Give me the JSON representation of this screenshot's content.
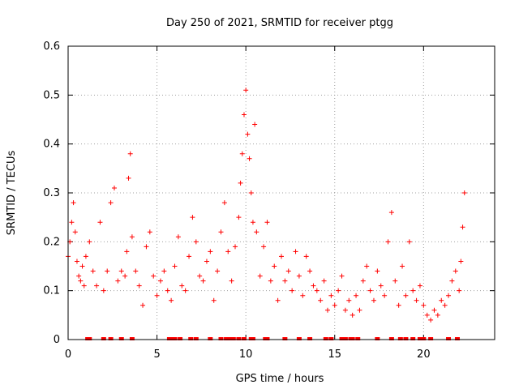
{
  "chart_data": {
    "type": "scatter",
    "title": "Day 250 of 2021, SRMTID for receiver ptgg",
    "xlabel": "GPS time / hours",
    "ylabel": "SRMTID / TECUs",
    "xlim": [
      0,
      24
    ],
    "ylim": [
      0,
      0.6
    ],
    "grid": true,
    "marker": "+",
    "color": "#ff0000",
    "x_ticks": [
      0,
      5,
      10,
      15,
      20
    ],
    "x_tick_labels": [
      "0",
      "5",
      "10",
      "15",
      "20"
    ],
    "y_ticks": [
      0,
      0.1,
      0.2,
      0.3,
      0.4,
      0.5,
      0.6
    ],
    "y_tick_labels": [
      "0",
      "0.1",
      "0.2",
      "0.3",
      "0.4",
      "0.5",
      "0.6"
    ],
    "series": [
      {
        "name": "SRMTID",
        "x": [
          0.0,
          0.1,
          0.2,
          0.3,
          0.4,
          0.5,
          0.6,
          0.7,
          0.8,
          0.9,
          1.0,
          1.2,
          1.4,
          1.6,
          1.8,
          2.0,
          2.2,
          2.4,
          2.6,
          2.8,
          3.0,
          3.2,
          3.3,
          3.4,
          3.5,
          3.6,
          3.8,
          4.0,
          4.2,
          4.4,
          4.6,
          4.8,
          5.0,
          5.2,
          5.4,
          5.6,
          5.8,
          6.0,
          6.2,
          6.4,
          6.6,
          6.8,
          7.0,
          7.2,
          7.4,
          7.6,
          7.8,
          8.0,
          8.2,
          8.4,
          8.6,
          8.8,
          9.0,
          9.2,
          9.4,
          9.6,
          9.7,
          9.8,
          9.9,
          10.0,
          10.1,
          10.2,
          10.3,
          10.4,
          10.5,
          10.6,
          10.8,
          11.0,
          11.2,
          11.4,
          11.6,
          11.8,
          12.0,
          12.2,
          12.4,
          12.6,
          12.8,
          13.0,
          13.2,
          13.4,
          13.6,
          13.8,
          14.0,
          14.2,
          14.4,
          14.6,
          14.8,
          15.0,
          15.2,
          15.4,
          15.6,
          15.8,
          16.0,
          16.2,
          16.4,
          16.6,
          16.8,
          17.0,
          17.2,
          17.4,
          17.6,
          17.8,
          18.0,
          18.2,
          18.4,
          18.6,
          18.8,
          19.0,
          19.2,
          19.4,
          19.6,
          19.8,
          20.0,
          20.2,
          20.4,
          20.6,
          20.8,
          21.0,
          21.2,
          21.4,
          21.6,
          21.8,
          22.0,
          22.1,
          22.2,
          22.3
        ],
        "y": [
          0.17,
          0.2,
          0.24,
          0.28,
          0.22,
          0.16,
          0.13,
          0.12,
          0.15,
          0.11,
          0.17,
          0.2,
          0.14,
          0.11,
          0.24,
          0.1,
          0.14,
          0.28,
          0.31,
          0.12,
          0.14,
          0.13,
          0.18,
          0.33,
          0.38,
          0.21,
          0.14,
          0.11,
          0.07,
          0.19,
          0.22,
          0.13,
          0.09,
          0.12,
          0.14,
          0.1,
          0.08,
          0.15,
          0.21,
          0.11,
          0.1,
          0.17,
          0.25,
          0.2,
          0.13,
          0.12,
          0.16,
          0.18,
          0.08,
          0.14,
          0.22,
          0.28,
          0.18,
          0.12,
          0.19,
          0.25,
          0.32,
          0.38,
          0.46,
          0.51,
          0.42,
          0.37,
          0.3,
          0.24,
          0.44,
          0.22,
          0.13,
          0.19,
          0.24,
          0.12,
          0.15,
          0.08,
          0.17,
          0.12,
          0.14,
          0.1,
          0.18,
          0.13,
          0.09,
          0.17,
          0.14,
          0.11,
          0.1,
          0.08,
          0.12,
          0.06,
          0.09,
          0.07,
          0.1,
          0.13,
          0.06,
          0.08,
          0.05,
          0.09,
          0.06,
          0.12,
          0.15,
          0.1,
          0.08,
          0.14,
          0.11,
          0.09,
          0.2,
          0.26,
          0.12,
          0.07,
          0.15,
          0.09,
          0.2,
          0.1,
          0.08,
          0.11,
          0.07,
          0.05,
          0.04,
          0.06,
          0.05,
          0.08,
          0.07,
          0.09,
          0.12,
          0.14,
          0.1,
          0.16,
          0.23,
          0.3
        ]
      }
    ],
    "gap_markers_x": [
      1.1,
      1.2,
      2.0,
      2.4,
      3.0,
      3.6,
      5.7,
      5.9,
      6.0,
      6.3,
      6.9,
      7.2,
      8.0,
      8.6,
      8.9,
      9.1,
      9.3,
      9.6,
      9.9,
      10.3,
      10.4,
      11.1,
      11.2,
      12.2,
      13.0,
      13.6,
      14.5,
      14.8,
      15.4,
      15.6,
      15.9,
      16.0,
      16.3,
      17.4,
      18.2,
      18.7,
      19.0,
      19.4,
      19.8,
      20.0,
      20.4,
      21.4,
      21.9
    ]
  }
}
